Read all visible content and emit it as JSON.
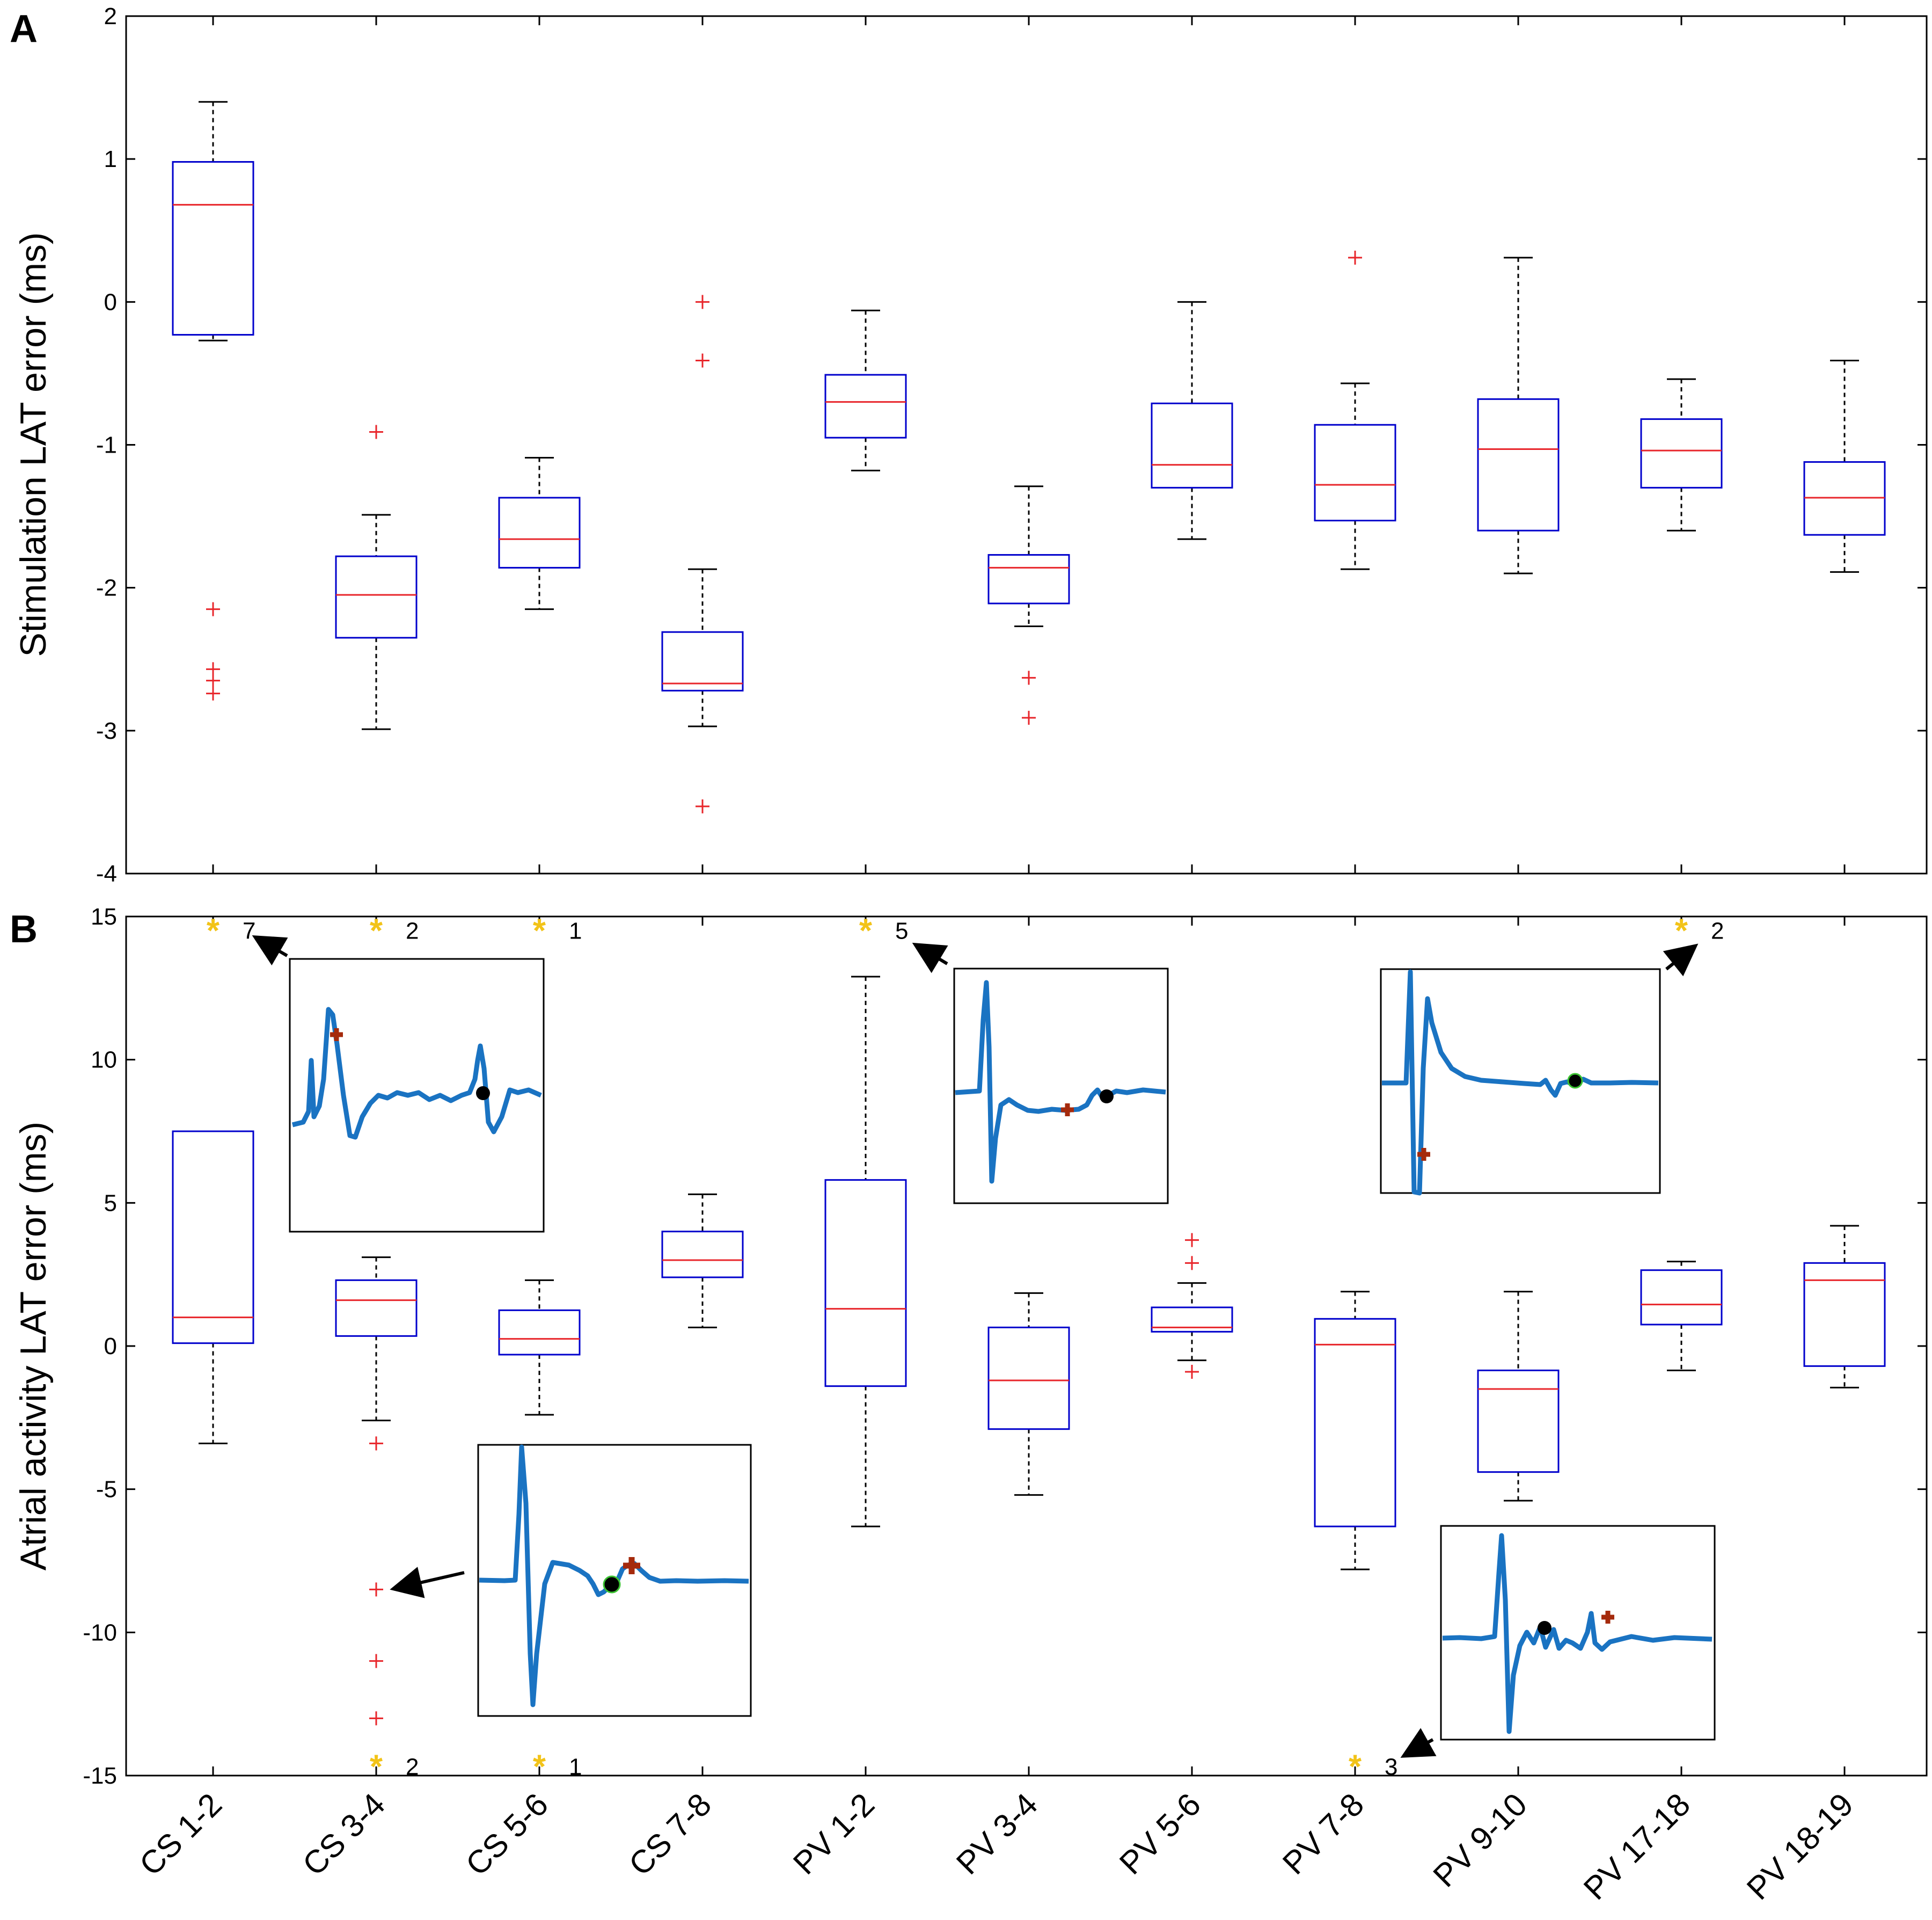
{
  "chart_data": [
    {
      "panel_label": "A",
      "type": "boxplot",
      "ylabel": "Stimulation LAT error (ms)",
      "ylim": [
        -4,
        2
      ],
      "yticks": [
        -4,
        -3,
        -2,
        -1,
        0,
        1,
        2
      ],
      "boxes": [
        {
          "whisker_low": -0.27,
          "q1": -0.23,
          "median": 0.68,
          "q3": 0.98,
          "whisker_high": 1.4,
          "outliers": [
            -2.15,
            -2.57,
            -2.65,
            -2.74
          ]
        },
        {
          "whisker_low": -2.99,
          "q1": -2.35,
          "median": -2.05,
          "q3": -1.78,
          "whisker_high": -1.49,
          "outliers": [
            -0.91
          ]
        },
        {
          "whisker_low": -2.15,
          "q1": -1.86,
          "median": -1.66,
          "q3": -1.37,
          "whisker_high": -1.09,
          "outliers": []
        },
        {
          "whisker_low": -2.97,
          "q1": -2.72,
          "median": -2.67,
          "q3": -2.31,
          "whisker_high": -1.87,
          "outliers": [
            0.0,
            -0.41,
            -3.53
          ]
        },
        {
          "whisker_low": -1.18,
          "q1": -0.95,
          "median": -0.7,
          "q3": -0.51,
          "whisker_high": -0.06,
          "outliers": []
        },
        {
          "whisker_low": -2.27,
          "q1": -2.11,
          "median": -1.86,
          "q3": -1.77,
          "whisker_high": -1.29,
          "outliers": [
            -2.63,
            -2.91
          ]
        },
        {
          "whisker_low": -1.66,
          "q1": -1.3,
          "median": -1.14,
          "q3": -0.71,
          "whisker_high": 0.0,
          "outliers": []
        },
        {
          "whisker_low": -1.87,
          "q1": -1.53,
          "median": -1.28,
          "q3": -0.86,
          "whisker_high": -0.57,
          "outliers": [
            0.31
          ]
        },
        {
          "whisker_low": -1.9,
          "q1": -1.6,
          "median": -1.03,
          "q3": -0.68,
          "whisker_high": 0.31,
          "outliers": []
        },
        {
          "whisker_low": -1.6,
          "q1": -1.3,
          "median": -1.04,
          "q3": -0.82,
          "whisker_high": -0.54,
          "outliers": []
        },
        {
          "whisker_low": -1.89,
          "q1": -1.63,
          "median": -1.37,
          "q3": -1.12,
          "whisker_high": -0.41,
          "outliers": []
        }
      ]
    },
    {
      "panel_label": "B",
      "type": "boxplot",
      "ylabel": "Atrial activity LAT error (ms)",
      "ylim": [
        -15,
        15
      ],
      "yticks": [
        -15,
        -10,
        -5,
        0,
        5,
        10,
        15
      ],
      "boxes": [
        {
          "whisker_low": -3.4,
          "q1": 0.1,
          "median": 1.0,
          "q3": 7.5,
          "whisker_high": 7.5,
          "outliers": [],
          "offscale": [
            {
              "value": 14.6,
              "count": "7"
            }
          ]
        },
        {
          "whisker_low": -2.6,
          "q1": 0.35,
          "median": 1.6,
          "q3": 2.3,
          "whisker_high": 3.1,
          "outliers": [
            -3.4,
            -8.5,
            -11.0,
            -13.0
          ],
          "offscale": [
            {
              "value": 14.6,
              "count": "2"
            },
            {
              "value": -14.6,
              "count": "2"
            }
          ]
        },
        {
          "whisker_low": -2.4,
          "q1": -0.3,
          "median": 0.25,
          "q3": 1.25,
          "whisker_high": 2.3,
          "outliers": [],
          "offscale": [
            {
              "value": 14.6,
              "count": "1"
            },
            {
              "value": -14.6,
              "count": "1"
            }
          ]
        },
        {
          "whisker_low": 0.65,
          "q1": 2.4,
          "median": 3.0,
          "q3": 4.0,
          "whisker_high": 5.3,
          "outliers": [],
          "offscale": []
        },
        {
          "whisker_low": -6.3,
          "q1": -1.4,
          "median": 1.3,
          "q3": 5.8,
          "whisker_high": 12.9,
          "outliers": [],
          "offscale": [
            {
              "value": 14.6,
              "count": "5"
            }
          ]
        },
        {
          "whisker_low": -5.2,
          "q1": -2.9,
          "median": -1.2,
          "q3": 0.65,
          "whisker_high": 1.85,
          "outliers": [],
          "offscale": []
        },
        {
          "whisker_low": -0.5,
          "q1": 0.5,
          "median": 0.65,
          "q3": 1.35,
          "whisker_high": 2.2,
          "outliers": [
            3.7,
            2.9,
            -0.9
          ],
          "offscale": []
        },
        {
          "whisker_low": -7.8,
          "q1": -6.3,
          "median": 0.05,
          "q3": 0.95,
          "whisker_high": 1.9,
          "outliers": [],
          "offscale": [
            {
              "value": -14.6,
              "count": "3"
            }
          ]
        },
        {
          "whisker_low": -5.4,
          "q1": -4.4,
          "median": -1.5,
          "q3": -0.85,
          "whisker_high": 1.9,
          "outliers": [],
          "offscale": []
        },
        {
          "whisker_low": -0.85,
          "q1": 0.75,
          "median": 1.45,
          "q3": 2.65,
          "whisker_high": 2.95,
          "outliers": [],
          "offscale": [
            {
              "value": 14.6,
              "count": "2"
            }
          ]
        },
        {
          "whisker_low": -1.45,
          "q1": -0.7,
          "median": 2.3,
          "q3": 2.9,
          "whisker_high": 4.2,
          "outliers": [],
          "offscale": []
        }
      ]
    }
  ],
  "categories": [
    "CS 1-2",
    "CS 3-4",
    "CS 5-6",
    "CS 7-8",
    "PV 1-2",
    "PV 3-4",
    "PV 5-6",
    "PV 7-8",
    "PV 9-10",
    "PV 17-18",
    "PV 18-19"
  ],
  "colors": {
    "box": "#0000cc",
    "median": "#e8262b",
    "outlier": "#e8262b",
    "whisker": "#000000",
    "star": "#f2c318",
    "signal": "#1a73c2",
    "lat_marker": "#a52a0c",
    "dot": "#000000"
  }
}
